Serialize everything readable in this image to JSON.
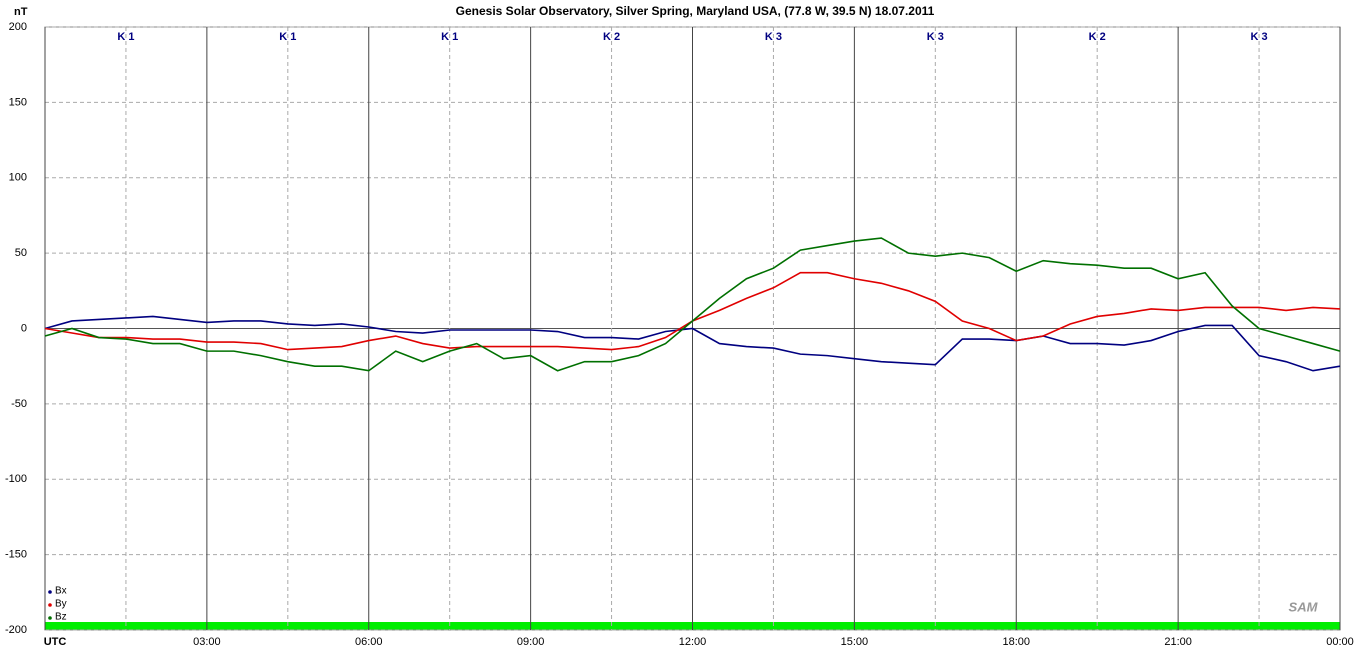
{
  "chart_data": {
    "type": "line",
    "title": "Genesis Solar Observatory, Silver Spring, Maryland USA, (77.8 W, 39.5 N)  18.07.2011",
    "y_unit": "nT",
    "logo": "SAM",
    "x": [
      0,
      0.5,
      1,
      1.5,
      2,
      2.5,
      3,
      3.5,
      4,
      4.5,
      5,
      5.5,
      6,
      6.5,
      7,
      7.5,
      8,
      8.5,
      9,
      9.5,
      10,
      10.5,
      11,
      11.5,
      12,
      12.5,
      13,
      13.5,
      14,
      14.5,
      15,
      15.5,
      16,
      16.5,
      17,
      17.5,
      18,
      18.5,
      19,
      19.5,
      20,
      20.5,
      21,
      21.5,
      22,
      22.5,
      23,
      23.5,
      24
    ],
    "series": [
      {
        "name": "Bx",
        "color": "#000080",
        "values": [
          0,
          5,
          6,
          7,
          8,
          6,
          4,
          5,
          5,
          3,
          2,
          3,
          1,
          -2,
          -3,
          -1,
          -1,
          -1,
          -1,
          -2,
          -6,
          -6,
          -7,
          -2,
          0,
          -10,
          -12,
          -13,
          -17,
          -18,
          -20,
          -22,
          -23,
          -24,
          -7,
          -7,
          -8,
          -5,
          -10,
          -10,
          -11,
          -8,
          -2,
          2,
          2,
          -18,
          -22,
          -28,
          -25
        ]
      },
      {
        "name": "By",
        "color": "#e00000",
        "values": [
          0,
          -3,
          -6,
          -6,
          -7,
          -7,
          -9,
          -9,
          -10,
          -14,
          -13,
          -12,
          -8,
          -5,
          -10,
          -13,
          -12,
          -12,
          -12,
          -12,
          -13,
          -14,
          -12,
          -6,
          5,
          12,
          20,
          27,
          37,
          37,
          33,
          30,
          25,
          18,
          5,
          0,
          -8,
          -5,
          3,
          8,
          10,
          13,
          12,
          14,
          14,
          14,
          12,
          14,
          13
        ]
      },
      {
        "name": "Bz",
        "color": "#007000",
        "values": [
          -5,
          0,
          -6,
          -7,
          -10,
          -10,
          -15,
          -15,
          -18,
          -22,
          -25,
          -25,
          -28,
          -15,
          -22,
          -15,
          -10,
          -20,
          -18,
          -28,
          -22,
          -22,
          -18,
          -10,
          5,
          20,
          33,
          40,
          52,
          55,
          58,
          60,
          50,
          48,
          50,
          47,
          38,
          45,
          43,
          42,
          40,
          40,
          33,
          37,
          15,
          0,
          -5,
          -10,
          -15
        ]
      }
    ],
    "k_index": {
      "values": [
        1,
        1,
        1,
        2,
        3,
        3,
        2,
        3
      ],
      "value_labels": [
        "K 1",
        "K 1",
        "K 1",
        "K 2",
        "K 3",
        "K 3",
        "K 2",
        "K 3"
      ]
    },
    "xlim": [
      0,
      24
    ],
    "xticks": [
      {
        "value": 0,
        "label": "UTC"
      },
      {
        "value": 3,
        "label": "03:00"
      },
      {
        "value": 6,
        "label": "06:00"
      },
      {
        "value": 9,
        "label": "09:00"
      },
      {
        "value": 12,
        "label": "12:00"
      },
      {
        "value": 15,
        "label": "15:00"
      },
      {
        "value": 18,
        "label": "18:00"
      },
      {
        "value": 21,
        "label": "21:00"
      },
      {
        "value": 24,
        "label": "00:00"
      }
    ],
    "xminor_ticks": [
      1.5,
      4.5,
      7.5,
      10.5,
      13.5,
      16.5,
      19.5,
      22.5
    ],
    "ylim": [
      -200,
      200
    ],
    "yticks": [
      -200,
      -150,
      -100,
      -50,
      0,
      50,
      100,
      150,
      200
    ],
    "grid": true
  }
}
